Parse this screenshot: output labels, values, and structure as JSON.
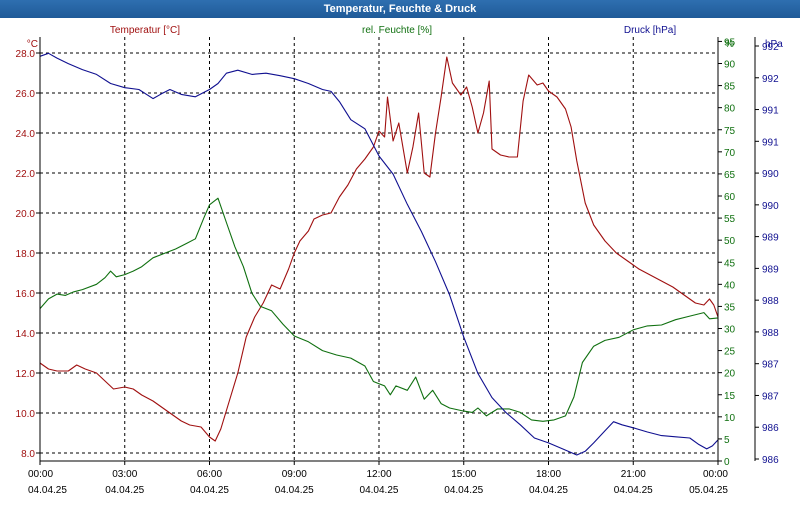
{
  "window": {
    "title": "Temperatur, Feuchte & Druck"
  },
  "colors": {
    "temperature": "#a01010",
    "humidity": "#107010",
    "pressure": "#101090",
    "grid": "#000000",
    "axis_text": "#000000"
  },
  "chart_data": {
    "type": "line",
    "title": "Temperatur, Feuchte & Druck",
    "grid": true,
    "x_ticks": [
      {
        "time": "00:00",
        "date": "04.04.25"
      },
      {
        "time": "03:00",
        "date": "04.04.25"
      },
      {
        "time": "06:00",
        "date": "04.04.25"
      },
      {
        "time": "09:00",
        "date": "04.04.25"
      },
      {
        "time": "12:00",
        "date": "04.04.25"
      },
      {
        "time": "15:00",
        "date": "04.04.25"
      },
      {
        "time": "18:00",
        "date": "04.04.25"
      },
      {
        "time": "21:00",
        "date": "04.04.25"
      },
      {
        "time": "00:00",
        "date": "05.04.25"
      }
    ],
    "x_range_hours": [
      0,
      24
    ],
    "axes": {
      "temperature": {
        "unit": "°C",
        "label": "Temperatur [°C]",
        "range": [
          7.6,
          28.8
        ],
        "ticks": [
          "8.0",
          "10.0",
          "12.0",
          "14.0",
          "16.0",
          "18.0",
          "20.0",
          "22.0",
          "24.0",
          "26.0",
          "28.0"
        ]
      },
      "humidity": {
        "unit": "%",
        "label": "rel. Feuchte [%]",
        "range": [
          0,
          96
        ],
        "ticks": [
          "0",
          "5",
          "10",
          "15",
          "20",
          "25",
          "30",
          "35",
          "40",
          "45",
          "50",
          "55",
          "60",
          "65",
          "70",
          "75",
          "80",
          "85",
          "90",
          "95"
        ]
      },
      "pressure": {
        "unit": "hPa",
        "label": "Druck [hPa]",
        "range": [
          985.8,
          992.82
        ],
        "ticks": [
          "986",
          "986",
          "987",
          "987",
          "988",
          "988",
          "989",
          "989",
          "990",
          "990",
          "991",
          "991",
          "992",
          "992"
        ]
      }
    },
    "series": [
      {
        "name": "Temperatur [°C]",
        "axis": "temperature",
        "points": [
          [
            0,
            12.5
          ],
          [
            0.3,
            12.2
          ],
          [
            0.6,
            12.1
          ],
          [
            1.0,
            12.1
          ],
          [
            1.3,
            12.4
          ],
          [
            1.6,
            12.2
          ],
          [
            2.0,
            12.0
          ],
          [
            2.3,
            11.6
          ],
          [
            2.6,
            11.2
          ],
          [
            3.0,
            11.3
          ],
          [
            3.3,
            11.2
          ],
          [
            3.6,
            10.9
          ],
          [
            4.0,
            10.6
          ],
          [
            4.5,
            10.1
          ],
          [
            5.0,
            9.6
          ],
          [
            5.3,
            9.4
          ],
          [
            5.7,
            9.3
          ],
          [
            6.0,
            8.8
          ],
          [
            6.2,
            8.6
          ],
          [
            6.4,
            9.2
          ],
          [
            6.7,
            10.6
          ],
          [
            7.0,
            12.0
          ],
          [
            7.3,
            13.8
          ],
          [
            7.6,
            14.8
          ],
          [
            7.9,
            15.5
          ],
          [
            8.2,
            16.4
          ],
          [
            8.5,
            16.2
          ],
          [
            8.8,
            17.2
          ],
          [
            9.0,
            18.0
          ],
          [
            9.2,
            18.6
          ],
          [
            9.5,
            19.1
          ],
          [
            9.7,
            19.7
          ],
          [
            10.0,
            19.9
          ],
          [
            10.3,
            20.0
          ],
          [
            10.6,
            20.8
          ],
          [
            10.9,
            21.4
          ],
          [
            11.2,
            22.2
          ],
          [
            11.5,
            22.7
          ],
          [
            11.8,
            23.3
          ],
          [
            12.0,
            24.1
          ],
          [
            12.2,
            23.8
          ],
          [
            12.3,
            25.8
          ],
          [
            12.5,
            23.6
          ],
          [
            12.7,
            24.5
          ],
          [
            13.0,
            22.0
          ],
          [
            13.2,
            23.3
          ],
          [
            13.4,
            25.0
          ],
          [
            13.6,
            22.0
          ],
          [
            13.8,
            21.8
          ],
          [
            14.0,
            24.0
          ],
          [
            14.2,
            25.8
          ],
          [
            14.4,
            27.8
          ],
          [
            14.6,
            26.5
          ],
          [
            14.9,
            25.9
          ],
          [
            15.1,
            26.3
          ],
          [
            15.3,
            25.3
          ],
          [
            15.5,
            24.0
          ],
          [
            15.7,
            25.0
          ],
          [
            15.9,
            26.6
          ],
          [
            16.0,
            23.2
          ],
          [
            16.3,
            22.9
          ],
          [
            16.6,
            22.8
          ],
          [
            16.9,
            22.8
          ],
          [
            17.1,
            25.6
          ],
          [
            17.3,
            26.9
          ],
          [
            17.6,
            26.4
          ],
          [
            17.8,
            26.5
          ],
          [
            18.0,
            26.1
          ],
          [
            18.3,
            25.8
          ],
          [
            18.6,
            25.2
          ],
          [
            18.8,
            24.3
          ],
          [
            19.0,
            22.6
          ],
          [
            19.3,
            20.5
          ],
          [
            19.6,
            19.4
          ],
          [
            20.0,
            18.6
          ],
          [
            20.4,
            18.0
          ],
          [
            20.8,
            17.6
          ],
          [
            21.2,
            17.2
          ],
          [
            21.6,
            16.9
          ],
          [
            22.0,
            16.6
          ],
          [
            22.4,
            16.3
          ],
          [
            22.8,
            15.9
          ],
          [
            23.2,
            15.5
          ],
          [
            23.5,
            15.4
          ],
          [
            23.7,
            15.7
          ],
          [
            23.85,
            15.4
          ],
          [
            24.0,
            14.8
          ]
        ]
      },
      {
        "name": "rel. Feuchte [%]",
        "axis": "humidity",
        "points": [
          [
            0,
            34.5
          ],
          [
            0.3,
            36.7
          ],
          [
            0.6,
            37.8
          ],
          [
            0.9,
            37.5
          ],
          [
            1.2,
            38.3
          ],
          [
            1.5,
            38.8
          ],
          [
            2.0,
            40.0
          ],
          [
            2.3,
            41.5
          ],
          [
            2.5,
            43.0
          ],
          [
            2.7,
            41.7
          ],
          [
            3.0,
            42.2
          ],
          [
            3.3,
            43.0
          ],
          [
            3.6,
            44.0
          ],
          [
            4.0,
            46.0
          ],
          [
            4.4,
            47.0
          ],
          [
            4.8,
            48.0
          ],
          [
            5.2,
            49.3
          ],
          [
            5.5,
            50.3
          ],
          [
            5.8,
            55.0
          ],
          [
            6.0,
            58.0
          ],
          [
            6.3,
            59.5
          ],
          [
            6.6,
            54.0
          ],
          [
            6.9,
            48.5
          ],
          [
            7.2,
            44.0
          ],
          [
            7.5,
            38.0
          ],
          [
            7.8,
            35.0
          ],
          [
            8.2,
            34.0
          ],
          [
            8.6,
            31.0
          ],
          [
            9.0,
            28.3
          ],
          [
            9.5,
            27.0
          ],
          [
            10.0,
            25.0
          ],
          [
            10.5,
            24.0
          ],
          [
            11.0,
            23.3
          ],
          [
            11.5,
            21.5
          ],
          [
            11.8,
            18.0
          ],
          [
            12.0,
            17.5
          ],
          [
            12.2,
            17.0
          ],
          [
            12.4,
            15.0
          ],
          [
            12.6,
            17.0
          ],
          [
            13.0,
            16.0
          ],
          [
            13.3,
            19.0
          ],
          [
            13.6,
            14.0
          ],
          [
            13.9,
            16.0
          ],
          [
            14.2,
            13.0
          ],
          [
            14.5,
            12.0
          ],
          [
            15.0,
            11.3
          ],
          [
            15.3,
            11.0
          ],
          [
            15.5,
            12.0
          ],
          [
            15.8,
            10.2
          ],
          [
            16.2,
            11.8
          ],
          [
            16.6,
            11.8
          ],
          [
            17.0,
            11.0
          ],
          [
            17.4,
            9.3
          ],
          [
            17.8,
            9.0
          ],
          [
            18.2,
            9.3
          ],
          [
            18.6,
            10.2
          ],
          [
            18.9,
            14.5
          ],
          [
            19.2,
            22.3
          ],
          [
            19.6,
            26.0
          ],
          [
            20.0,
            27.3
          ],
          [
            20.5,
            28.0
          ],
          [
            21.0,
            29.7
          ],
          [
            21.5,
            30.6
          ],
          [
            22.0,
            30.8
          ],
          [
            22.5,
            32.0
          ],
          [
            23.0,
            32.8
          ],
          [
            23.5,
            33.6
          ],
          [
            23.7,
            32.2
          ],
          [
            24.0,
            32.4
          ]
        ]
      },
      {
        "name": "Druck [hPa]",
        "axis": "pressure",
        "points": [
          [
            0,
            992.5
          ],
          [
            0.3,
            992.55
          ],
          [
            0.6,
            992.47
          ],
          [
            1.0,
            992.38
          ],
          [
            1.5,
            992.28
          ],
          [
            2.0,
            992.2
          ],
          [
            2.5,
            992.05
          ],
          [
            3.0,
            991.98
          ],
          [
            3.5,
            991.95
          ],
          [
            4.0,
            991.8
          ],
          [
            4.3,
            991.88
          ],
          [
            4.6,
            991.95
          ],
          [
            5.0,
            991.87
          ],
          [
            5.5,
            991.83
          ],
          [
            6.0,
            991.95
          ],
          [
            6.3,
            992.05
          ],
          [
            6.6,
            992.22
          ],
          [
            7.0,
            992.27
          ],
          [
            7.5,
            992.2
          ],
          [
            8.0,
            992.22
          ],
          [
            8.5,
            992.18
          ],
          [
            9.0,
            992.13
          ],
          [
            9.5,
            992.05
          ],
          [
            10.0,
            991.95
          ],
          [
            10.3,
            991.92
          ],
          [
            10.6,
            991.75
          ],
          [
            11.0,
            991.45
          ],
          [
            11.5,
            991.3
          ],
          [
            12.0,
            990.85
          ],
          [
            12.5,
            990.55
          ],
          [
            13.0,
            990.05
          ],
          [
            13.5,
            989.6
          ],
          [
            14.0,
            989.1
          ],
          [
            14.5,
            988.55
          ],
          [
            15.0,
            987.85
          ],
          [
            15.5,
            987.25
          ],
          [
            16.0,
            986.85
          ],
          [
            16.5,
            986.6
          ],
          [
            17.0,
            986.4
          ],
          [
            17.5,
            986.18
          ],
          [
            18.0,
            986.1
          ],
          [
            18.5,
            986.0
          ],
          [
            19.0,
            985.9
          ],
          [
            19.3,
            985.96
          ],
          [
            19.6,
            986.1
          ],
          [
            20.0,
            986.3
          ],
          [
            20.3,
            986.45
          ],
          [
            20.6,
            986.4
          ],
          [
            21.0,
            986.35
          ],
          [
            21.5,
            986.28
          ],
          [
            22.0,
            986.22
          ],
          [
            22.5,
            986.2
          ],
          [
            23.0,
            986.18
          ],
          [
            23.3,
            986.08
          ],
          [
            23.6,
            986.0
          ],
          [
            23.8,
            986.05
          ],
          [
            24.0,
            986.15
          ]
        ]
      }
    ]
  }
}
